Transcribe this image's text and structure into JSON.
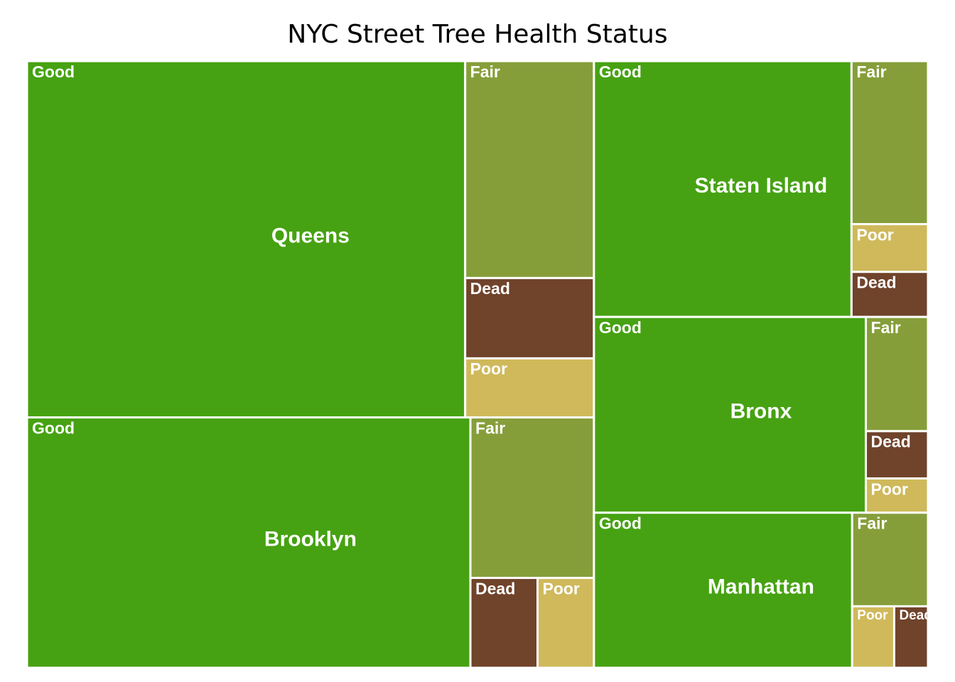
{
  "colors": {
    "Good": "#46a212",
    "Fair": "#869e3a",
    "Poor": "#cfb95b",
    "Dead": "#70432b",
    "border": "#ffffff"
  },
  "chart_data": {
    "type": "treemap",
    "title": "NYC Street Tree Health Status",
    "boroughs": [
      {
        "name": "Queens",
        "children": [
          {
            "label": "Good",
            "value": 30800
          },
          {
            "label": "Fair",
            "value": 5510
          },
          {
            "label": "Dead",
            "value": 2040
          },
          {
            "label": "Poor",
            "value": 1500
          }
        ]
      },
      {
        "name": "Brooklyn",
        "children": [
          {
            "label": "Good",
            "value": 21900
          },
          {
            "label": "Fair",
            "value": 3910
          },
          {
            "label": "Dead",
            "value": 1190
          },
          {
            "label": "Poor",
            "value": 1000
          }
        ]
      },
      {
        "name": "Staten Island",
        "children": [
          {
            "label": "Good",
            "value": 13000
          },
          {
            "label": "Fair",
            "value": 2460
          },
          {
            "label": "Poor",
            "value": 720
          },
          {
            "label": "Dead",
            "value": 680
          }
        ]
      },
      {
        "name": "Bronx",
        "children": [
          {
            "label": "Good",
            "value": 10500
          },
          {
            "label": "Fair",
            "value": 1400
          },
          {
            "label": "Dead",
            "value": 580
          },
          {
            "label": "Poor",
            "value": 420
          }
        ]
      },
      {
        "name": "Manhattan",
        "children": [
          {
            "label": "Good",
            "value": 7900
          },
          {
            "label": "Fair",
            "value": 1400
          },
          {
            "label": "Poor",
            "value": 510
          },
          {
            "label": "Dead",
            "value": 410
          }
        ]
      }
    ]
  }
}
